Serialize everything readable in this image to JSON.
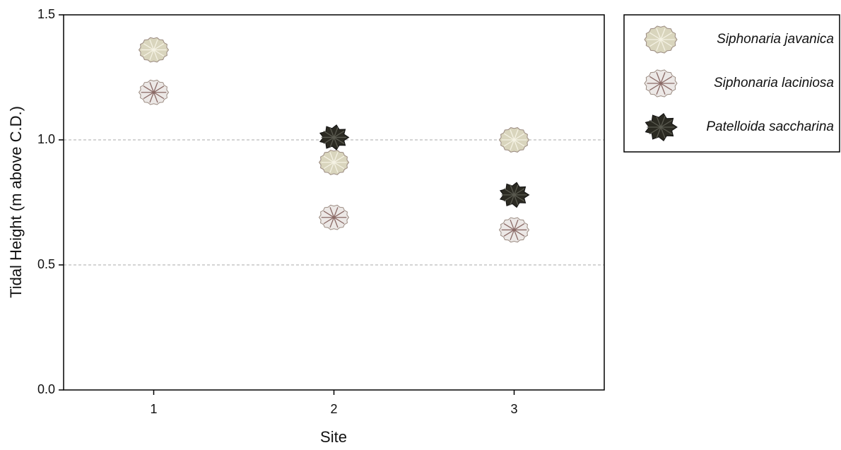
{
  "chart_data": {
    "type": "scatter",
    "x_label": "Site",
    "y_label": "Tidal Height (m above C.D.)",
    "categories": [
      "1",
      "2",
      "3"
    ],
    "series": [
      {
        "name": "Siphonaria javanica",
        "color": "#d9d5bd",
        "values": [
          1.36,
          0.91,
          1.0
        ]
      },
      {
        "name": "Siphonaria laciniosa",
        "color": "#ece8e6",
        "values": [
          1.19,
          0.69,
          0.64
        ]
      },
      {
        "name": "Patelloida saccharina",
        "color": "#2b2a22",
        "values": [
          null,
          1.01,
          0.78
        ]
      }
    ],
    "ylim": [
      0,
      1.5
    ],
    "yticks": [
      {
        "value": 0,
        "label": "0.0"
      },
      {
        "value": 0.5,
        "label": "0.5"
      },
      {
        "value": 1,
        "label": "1.0"
      },
      {
        "value": 1.5,
        "label": "1.5"
      }
    ],
    "grid": true,
    "legend": "outside-right"
  }
}
